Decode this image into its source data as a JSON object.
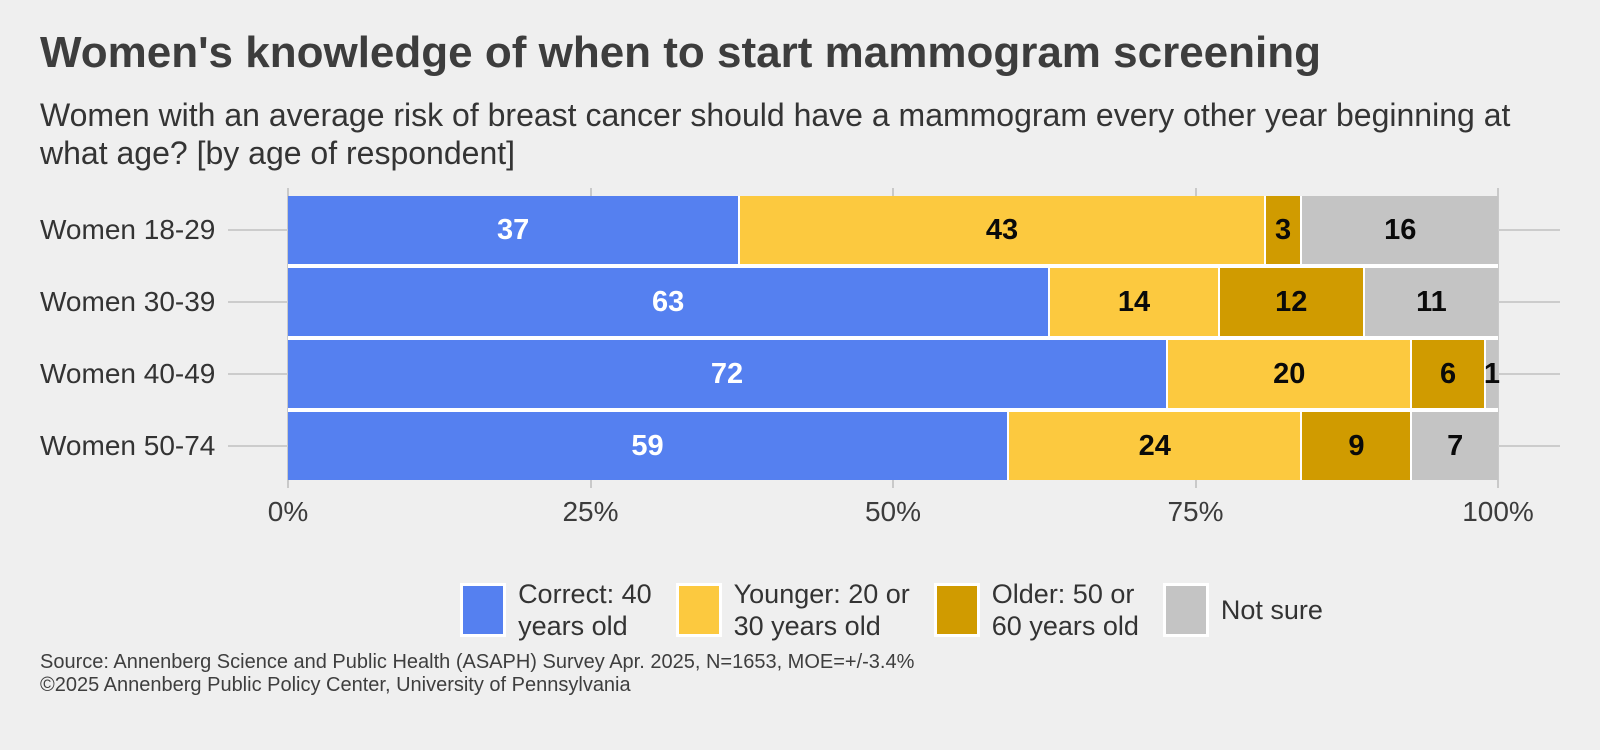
{
  "header": {
    "title": "Women's knowledge of when to start mammogram screening",
    "subtitle": "Women with an average risk of breast cancer should have a mammogram every other year beginning at what age? [by age of respondent]"
  },
  "chart_data": {
    "type": "bar",
    "variant": "horizontal-stacked-percent",
    "categories": [
      "Women 18-29",
      "Women 30-39",
      "Women 40-49",
      "Women 50-74"
    ],
    "series": [
      {
        "name": "Correct: 40 years old",
        "color": "#5580f0",
        "label_color": "#ffffff",
        "values": [
          37,
          63,
          72,
          59
        ]
      },
      {
        "name": "Younger: 20 or 30 years old",
        "color": "#fcc93f",
        "label_color": "#0a0a0a",
        "values": [
          43,
          14,
          20,
          24
        ]
      },
      {
        "name": "Older: 50 or 60 years old",
        "color": "#d09b00",
        "label_color": "#0a0a0a",
        "values": [
          3,
          12,
          6,
          9
        ]
      },
      {
        "name": "Not sure",
        "color": "#c4c4c4",
        "label_color": "#0a0a0a",
        "values": [
          16,
          11,
          1,
          7
        ]
      }
    ],
    "x_ticks": [
      {
        "label": "0%",
        "pct": 0
      },
      {
        "label": "25%",
        "pct": 25
      },
      {
        "label": "50%",
        "pct": 50
      },
      {
        "label": "75%",
        "pct": 75
      },
      {
        "label": "100%",
        "pct": 100
      }
    ],
    "xlim": [
      0,
      100
    ],
    "grid": true,
    "value_labels": true,
    "legend_position": "bottom-center"
  },
  "legend": {
    "items": [
      {
        "color": "#5580f0",
        "line1": "Correct: 40",
        "line2": "years old"
      },
      {
        "color": "#fcc93f",
        "line1": "Younger: 20 or",
        "line2": "30 years old"
      },
      {
        "color": "#d09b00",
        "line1": "Older: 50 or",
        "line2": "60 years old"
      },
      {
        "color": "#c4c4c4",
        "line1": "Not sure",
        "line2": ""
      }
    ]
  },
  "footer": {
    "source_line1": "Source: Annenberg Science and Public Health (ASAPH) Survey Apr. 2025, N=1653, MOE=+/-3.4%",
    "source_line2": "©2025 Annenberg Public Policy Center, University of Pennsylvania"
  },
  "colors": {
    "background": "#efefef",
    "grid": "#c9c9c9",
    "ruler": "#cccccc",
    "separator": "#ffffff"
  }
}
